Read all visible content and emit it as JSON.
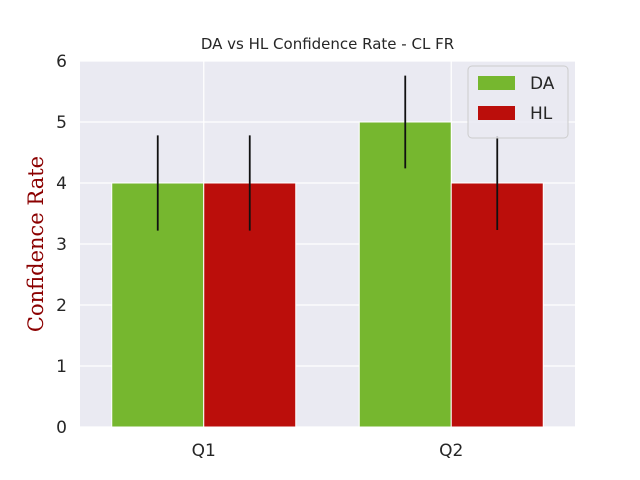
{
  "chart_data": {
    "type": "bar",
    "title": "DA vs HL Confidence Rate - CL FR",
    "xlabel": "",
    "ylabel": "Confidence Rate",
    "ylabel_color": "#8b0000",
    "categories": [
      "Q1",
      "Q2"
    ],
    "ylim": [
      0,
      6
    ],
    "yticks": [
      "0",
      "1",
      "2",
      "3",
      "4",
      "5",
      "6"
    ],
    "grid": true,
    "legend_position": "top-right",
    "background_color": "#eaeaf2",
    "series": [
      {
        "name": "DA",
        "color": "#76b72f",
        "values": [
          4,
          5
        ],
        "errors": [
          0.78,
          0.76
        ]
      },
      {
        "name": "HL",
        "color": "#bb0e0b",
        "values": [
          4,
          4
        ],
        "errors": [
          0.78,
          0.77
        ]
      }
    ]
  }
}
